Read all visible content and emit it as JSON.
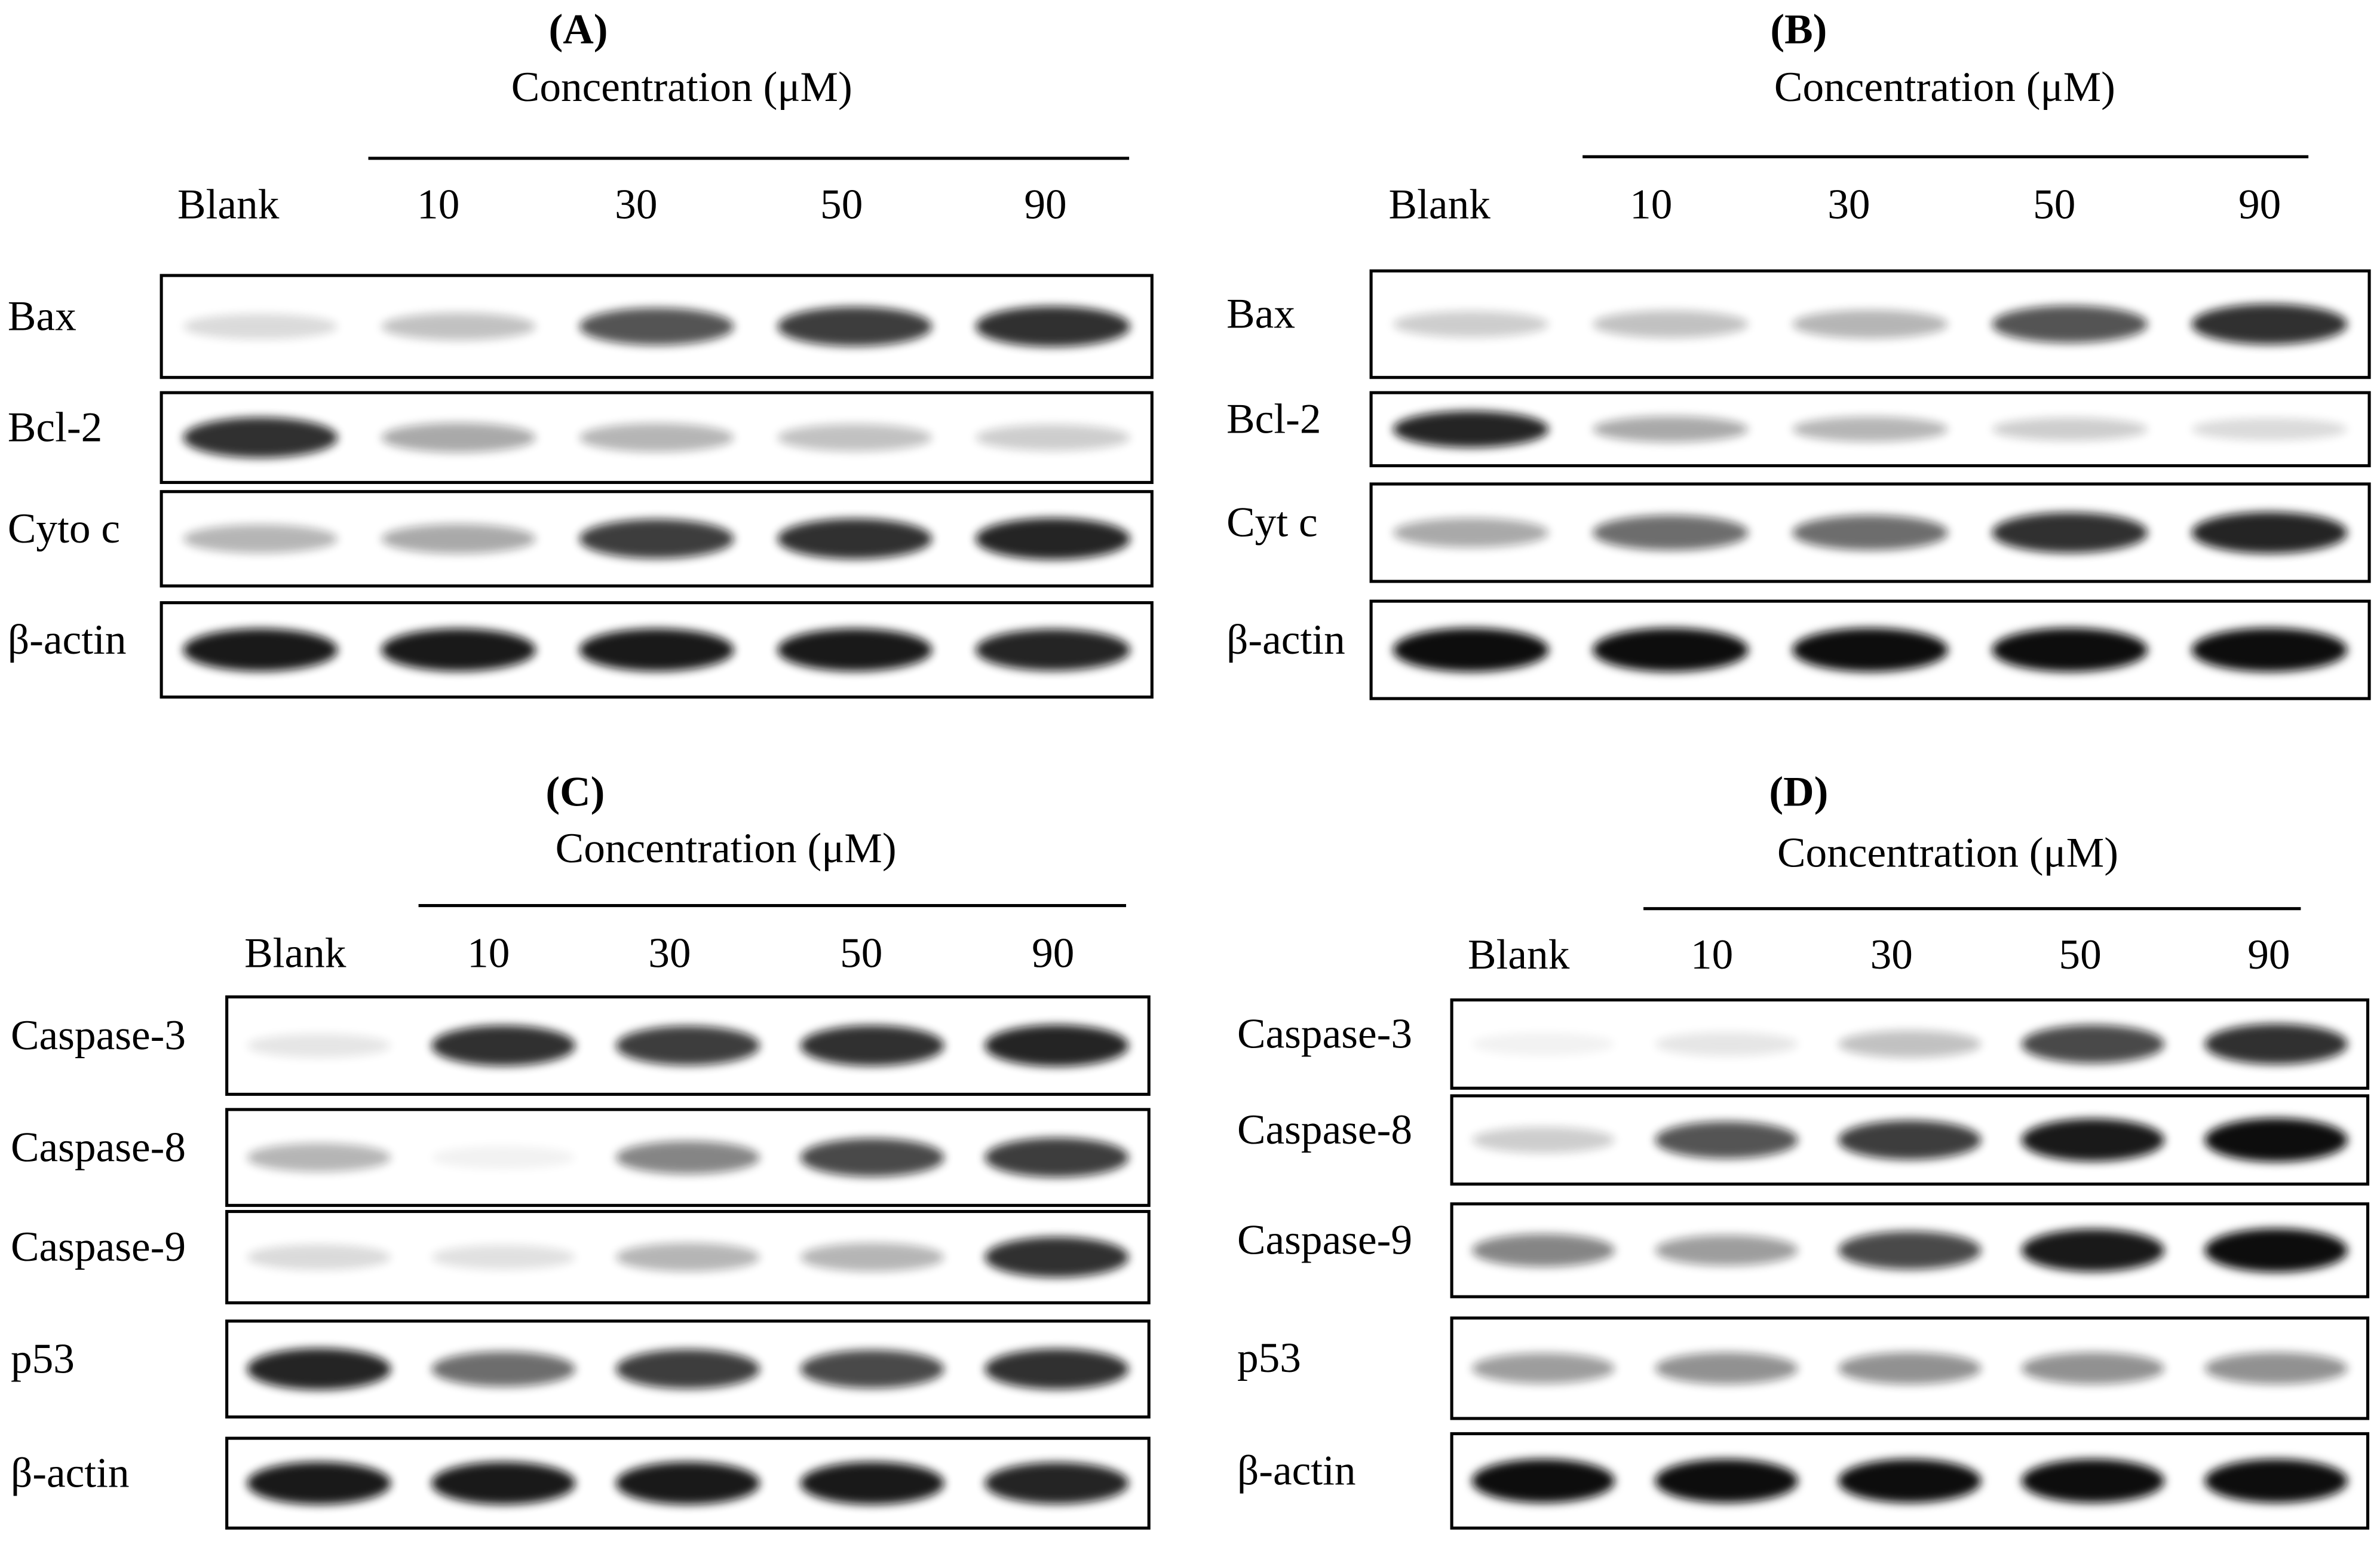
{
  "panels": [
    {
      "label": "(A)",
      "title": "Concentration (μM)",
      "lanes": [
        "Blank",
        "10",
        "30",
        "50",
        "90"
      ],
      "rows": [
        "Bax",
        "Bcl-2",
        "Cyto c",
        "β-actin"
      ]
    },
    {
      "label": "(B)",
      "title": "Concentration (μM)",
      "lanes": [
        "Blank",
        "10",
        "30",
        "50",
        "90"
      ],
      "rows": [
        "Bax",
        "Bcl-2",
        "Cyt c",
        "β-actin"
      ]
    },
    {
      "label": "(C)",
      "title": "Concentration (μM)",
      "lanes": [
        "Blank",
        "10",
        "30",
        "50",
        "90"
      ],
      "rows": [
        "Caspase-3",
        "Caspase-8",
        "Caspase-9",
        "p53",
        "β-actin"
      ]
    },
    {
      "label": "(D)",
      "title": "Concentration (μM)",
      "lanes": [
        "Blank",
        "10",
        "30",
        "50",
        "90"
      ],
      "rows": [
        "Caspase-3",
        "Caspase-8",
        "Caspase-9",
        "p53",
        "β-actin"
      ]
    }
  ]
}
